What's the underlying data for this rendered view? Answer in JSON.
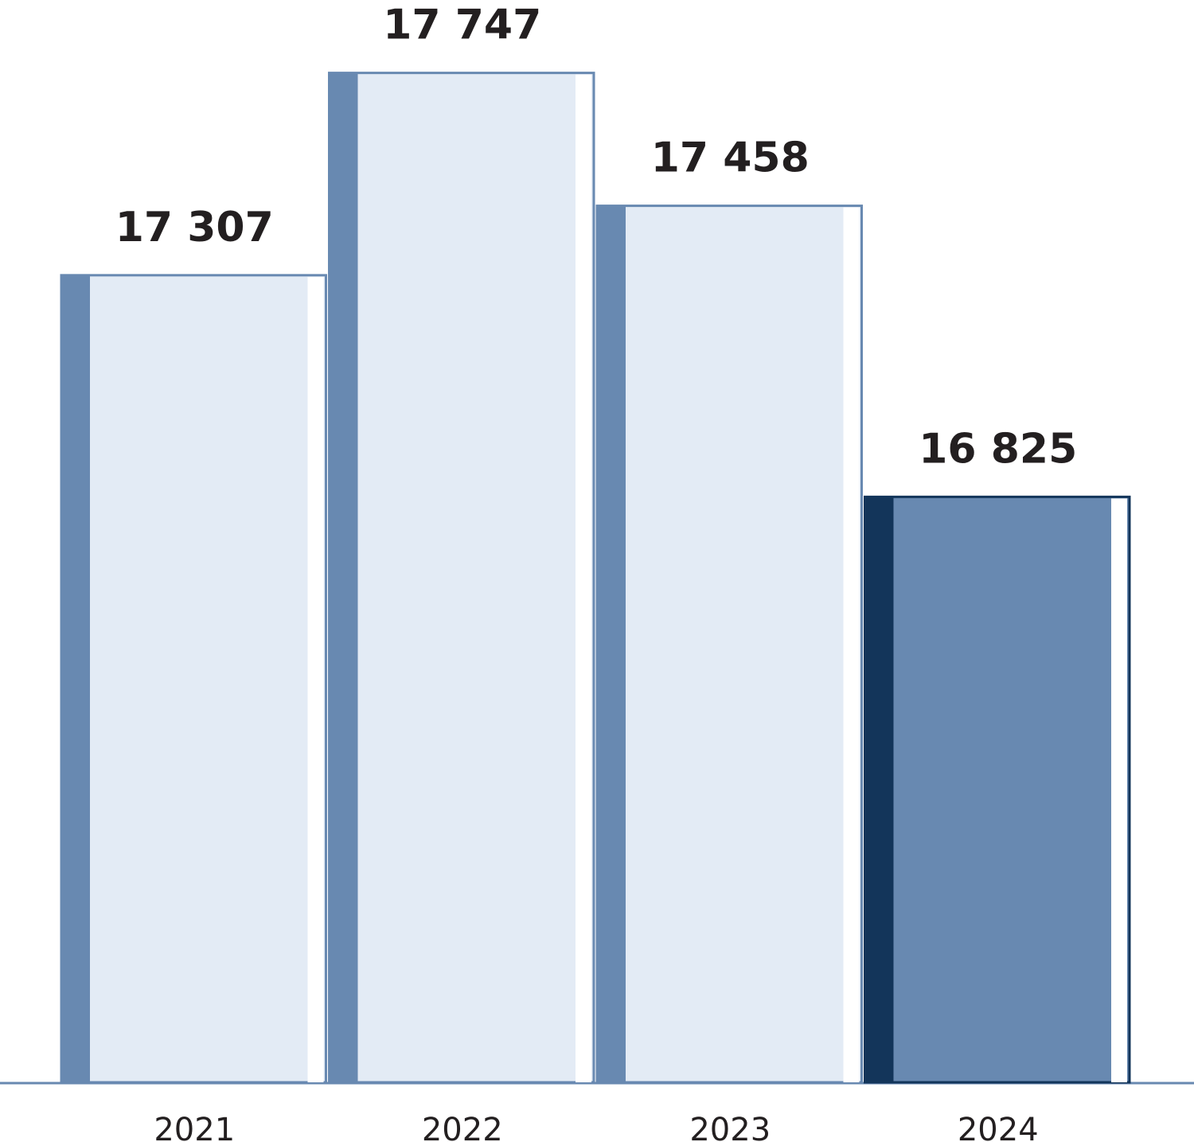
{
  "chart_data": {
    "type": "bar",
    "categories": [
      "2021",
      "2022",
      "2023",
      "2024"
    ],
    "values": [
      17307,
      17747,
      17458,
      16825
    ],
    "value_labels": [
      "17 307",
      "17 747",
      "17 458",
      "16 825"
    ],
    "colors": [
      "#e3ebf5",
      "#e3ebf5",
      "#e3ebf5",
      "#6889b1"
    ],
    "accent_colors": [
      "#6889b1",
      "#6889b1",
      "#6889b1",
      "#13355a"
    ],
    "ylim": [
      15550,
      17800
    ]
  }
}
